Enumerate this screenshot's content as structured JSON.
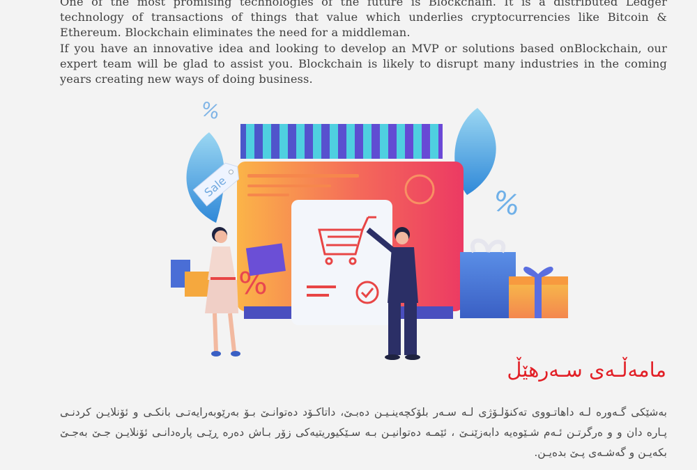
{
  "english": {
    "paragraph1": "One of the most promising technologies of the future is Blockchain. It is a distributed Ledger technology of transactions of things that value which underlies cryptocurrencies like Bitcoin & Ethereum. Blockchain eliminates the need for a middleman.",
    "paragraph2": "If you have an innovative idea and looking to develop an MVP or solutions based onBlockchain, our expert team will be glad to assist you. Blockchain is likely to disrupt many industries in the coming years creating new ways of doing business."
  },
  "illustration": {
    "tag_text": "Sale",
    "percent_symbol": "%",
    "colors": {
      "orange": "#f7a23a",
      "pink": "#ef3f66",
      "blue": "#4a8fe0",
      "purple": "#6b4fd6",
      "teal": "#35c3d8",
      "red": "#e84545"
    }
  },
  "kurdish": {
    "title": "مامەڵـەی سـەرهێڵ",
    "body": "بەشێکی گـەورە لـە داهاتـووی تەکنۆلـۆژی لـە سـەر بلۆکچەینـیـن دەبـێ، داتاکـۆد دەتوانـێ بـۆ بەرێوبەرایەتـی بانکـی و ئۆنلایـن کردنـی پـارە دان و و ەرگرتـن ئـەم شـێوەیە دابەزێنـێ ، ئێمـە دەتوانیـن بـە سـێکیوریتیەکی زۆر بـاش دەرە ڕێـی پارەدانـی ئۆنلایـن جـێ بەجـێ بکەیـن و گەشـەی پـێ بدەیـن."
  }
}
